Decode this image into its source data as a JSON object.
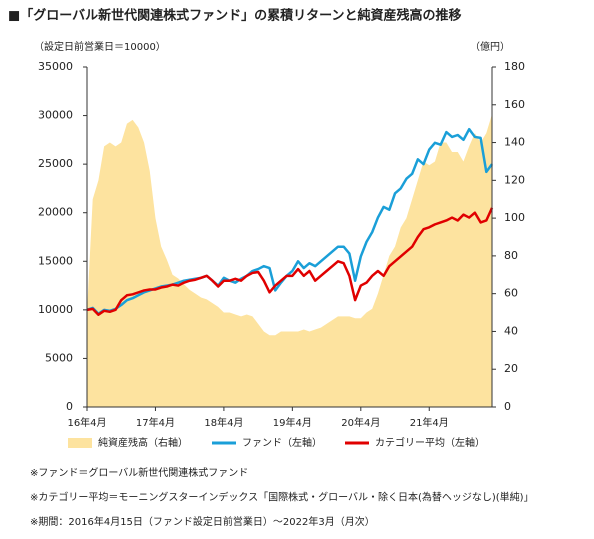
{
  "chart_data": {
    "type": "line",
    "title": "■「グローバル新世代関連株式ファンド」の累積リターンと純資産残高の推移",
    "ylabel": "（設定日前営業日＝10000）",
    "y2label": "（億円）",
    "categories": [
      "16年4月",
      null,
      null,
      null,
      null,
      null,
      null,
      null,
      null,
      null,
      null,
      null,
      "17年4月",
      null,
      null,
      null,
      null,
      null,
      null,
      null,
      null,
      null,
      null,
      null,
      "18年4月",
      null,
      null,
      null,
      null,
      null,
      null,
      null,
      null,
      null,
      null,
      null,
      "19年4月",
      null,
      null,
      null,
      null,
      null,
      null,
      null,
      null,
      null,
      null,
      null,
      "20年4月",
      null,
      null,
      null,
      null,
      null,
      null,
      null,
      null,
      null,
      null,
      null,
      "21年4月",
      null,
      null,
      null,
      null,
      null,
      null,
      null,
      null,
      null,
      null,
      null
    ],
    "ylim": [
      0,
      35000
    ],
    "yticks": [
      0,
      5000,
      10000,
      15000,
      20000,
      25000,
      30000,
      35000
    ],
    "y2lim": [
      0,
      180
    ],
    "y2ticks": [
      0,
      20,
      40,
      60,
      80,
      100,
      120,
      140,
      160,
      180
    ],
    "series": [
      {
        "name": "純資産残高（右軸）",
        "type": "area",
        "axis": "y2",
        "color": "#fde39f",
        "values": [
          50,
          110,
          120,
          138,
          140,
          138,
          140,
          150,
          152,
          148,
          140,
          125,
          100,
          85,
          78,
          70,
          68,
          65,
          62,
          60,
          58,
          57,
          55,
          53,
          50,
          50,
          49,
          48,
          49,
          48,
          44,
          40,
          38,
          38,
          40,
          40,
          40,
          40,
          41,
          40,
          41,
          42,
          44,
          46,
          48,
          48,
          48,
          47,
          47,
          50,
          52,
          60,
          70,
          80,
          85,
          95,
          100,
          110,
          120,
          130,
          128,
          130,
          140,
          140,
          135,
          135,
          130,
          138,
          145,
          140,
          145,
          155
        ]
      },
      {
        "name": "ファンド（左軸）",
        "type": "line",
        "color": "#1a9fd8",
        "values": [
          10000,
          10200,
          9600,
          10000,
          9900,
          10100,
          10500,
          11000,
          11200,
          11500,
          11800,
          12000,
          12200,
          12400,
          12500,
          12600,
          12800,
          13000,
          13100,
          13200,
          13300,
          13500,
          13000,
          12500,
          13300,
          13000,
          12800,
          13200,
          13500,
          14000,
          14200,
          14500,
          14300,
          12000,
          12800,
          13500,
          14000,
          15000,
          14300,
          14800,
          14500,
          15000,
          15500,
          16000,
          16500,
          16500,
          15800,
          13000,
          15500,
          17000,
          18000,
          19500,
          20600,
          20300,
          22000,
          22500,
          23500,
          24000,
          25500,
          25000,
          26500,
          27200,
          27000,
          28300,
          27800,
          28000,
          27500,
          28600,
          27800,
          27700,
          24200,
          25000
        ]
      },
      {
        "name": "カテゴリー平均（左軸）",
        "type": "line",
        "color": "#e00000",
        "values": [
          10000,
          10100,
          9500,
          9900,
          9800,
          10000,
          11000,
          11500,
          11600,
          11800,
          12000,
          12100,
          12100,
          12300,
          12400,
          12600,
          12500,
          12800,
          13000,
          13100,
          13300,
          13500,
          13000,
          12400,
          13000,
          13000,
          13200,
          13000,
          13500,
          13800,
          13900,
          13000,
          11800,
          12500,
          13000,
          13500,
          13500,
          14200,
          13500,
          14000,
          13000,
          13500,
          14000,
          14500,
          15000,
          14800,
          13500,
          11000,
          12500,
          12800,
          13500,
          14000,
          13500,
          14500,
          15000,
          15500,
          16000,
          16500,
          17500,
          18300,
          18500,
          18800,
          19000,
          19200,
          19500,
          19200,
          19800,
          19500,
          20000,
          19000,
          19200,
          20500
        ]
      }
    ],
    "notes": [
      "※ファンド＝グローバル新世代関連株式ファンド",
      "※カテゴリー平均＝モーニングスターインデックス「国際株式・グローバル・除く日本(為替ヘッジなし)(単純)」",
      "※期間：2016年4月15日（ファンド設定日前営業日）～2022年3月（月次）"
    ]
  }
}
